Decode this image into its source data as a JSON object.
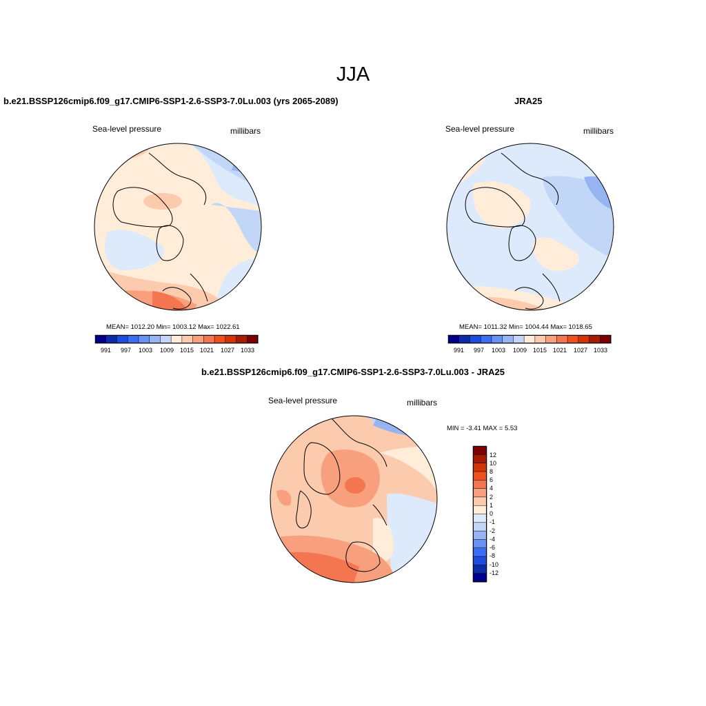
{
  "season": "JJA",
  "variable": "Sea-level pressure",
  "units": "millibars",
  "panel_left": {
    "title": "b.e21.BSSP126cmip6.f09_g17.CMIP6-SSP1-2.6-SSP3-7.0Lu.003 (yrs 2065-2089)",
    "stats": "MEAN= 1012.20  Min= 1003.12  Max= 1022.61"
  },
  "panel_right": {
    "title": "JRA25",
    "stats": "MEAN= 1011.32  Min= 1004.44  Max= 1018.65"
  },
  "panel_diff": {
    "title": "b.e21.BSSP126cmip6.f09_g17.CMIP6-SSP1-2.6-SSP3-7.0Lu.003 - JRA25",
    "stats": "MIN =  -3.41 MAX =   5.53"
  },
  "abs_colorbar": {
    "colors": [
      "#00008f",
      "#0a2ca8",
      "#1e4ee0",
      "#3c6ef5",
      "#6691f5",
      "#96b4f2",
      "#c2d6f7",
      "#ffecd9",
      "#fccaad",
      "#f8a07e",
      "#f47650",
      "#f0501e",
      "#d23608",
      "#a61c00",
      "#7f0000"
    ],
    "ticks": [
      "991",
      "997",
      "1003",
      "1009",
      "1015",
      "1021",
      "1027",
      "1033"
    ]
  },
  "diff_colorbar": {
    "colors": [
      "#7f0000",
      "#a61c00",
      "#d23608",
      "#f0501e",
      "#f47650",
      "#f8a07e",
      "#fccaad",
      "#ffecd9",
      "#dceafb",
      "#c2d6f7",
      "#96b4f2",
      "#6691f5",
      "#3c6ef5",
      "#1e4ee0",
      "#0a2ca8",
      "#00008f"
    ],
    "labels": [
      "12",
      "10",
      "8",
      "6",
      "4",
      "2",
      "1",
      "0",
      "-1",
      "-2",
      "-4",
      "-6",
      "-8",
      "-10",
      "-12"
    ]
  }
}
